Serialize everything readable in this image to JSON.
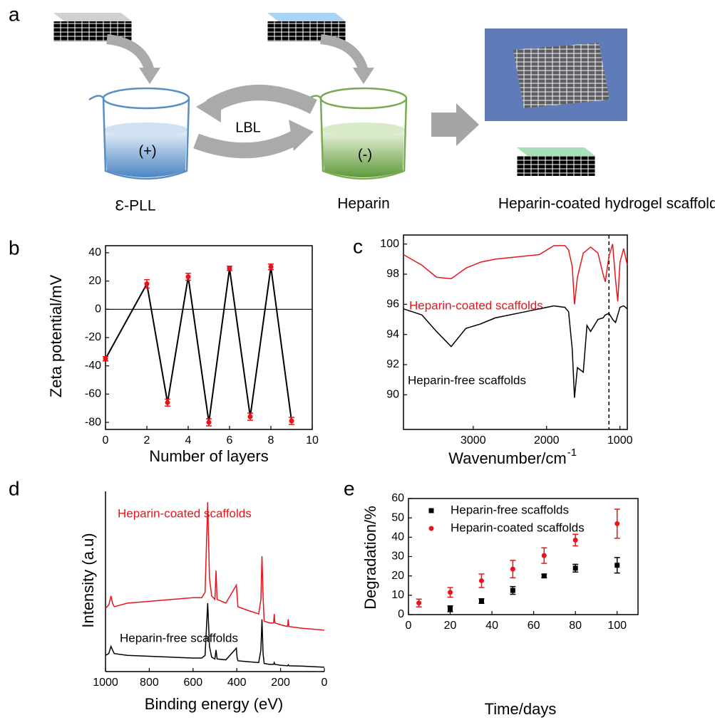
{
  "diagram": {
    "panel": "a",
    "lbl": "LBL",
    "plus": "(+)",
    "minus": "(-)",
    "left_label": "Ɛ-PLL",
    "mid_label": "Heparin",
    "right_label": "Heparin-coated hydrogel scaffolds"
  },
  "chart_data": [
    {
      "panel": "b",
      "type": "line",
      "box": true,
      "xlabel": "Number of layers",
      "ylabel": "Zeta potential/mV",
      "x": [
        0,
        2,
        3,
        4,
        5,
        6,
        7,
        8,
        9
      ],
      "series": [
        {
          "color": "#000000",
          "marker_color": "#e8141b",
          "values": [
            -35,
            18,
            -66,
            23,
            -80,
            29,
            -76,
            30,
            -79
          ],
          "errors": [
            1.5,
            3,
            2.5,
            2.5,
            2.5,
            1.5,
            2.5,
            2,
            2.5
          ]
        }
      ],
      "xlim": [
        0,
        10
      ],
      "ylim": [
        -85,
        45
      ],
      "xticks": [
        0,
        2,
        4,
        6,
        8,
        10
      ],
      "yticks": [
        40,
        20,
        0,
        -20,
        -40,
        -60,
        -80
      ],
      "zero_line": true
    },
    {
      "panel": "c",
      "type": "line",
      "box": true,
      "xlabel": "Wavenumber/cm",
      "xlabel_superscript": "-1",
      "x": [
        3950,
        3700,
        3500,
        3300,
        3100,
        2900,
        2700,
        2500,
        2300,
        2100,
        1900,
        1750,
        1700,
        1650,
        1620,
        1580,
        1500,
        1450,
        1400,
        1300,
        1230,
        1200,
        1150,
        1100,
        1060,
        1030,
        1000,
        950,
        900
      ],
      "series": [
        {
          "name": "Heparin-coated scaffolds",
          "color": "#e8141b",
          "values": [
            99.3,
            98.6,
            97.8,
            97.7,
            98.4,
            98.8,
            99.0,
            99.1,
            99.2,
            99.3,
            99.9,
            99.9,
            99.6,
            98.5,
            96.0,
            97.8,
            99.4,
            99.6,
            99.8,
            99.4,
            98.0,
            97.5,
            99.2,
            100.0,
            97.6,
            96.2,
            98.8,
            99.7,
            98.6
          ]
        },
        {
          "name": "Heparin-free scaffolds",
          "color": "#000000",
          "values": [
            95.7,
            95.3,
            94.2,
            93.2,
            94.4,
            94.7,
            95.1,
            95.3,
            95.5,
            95.7,
            95.9,
            95.8,
            95.5,
            93.0,
            89.8,
            91.8,
            91.5,
            94.6,
            94.2,
            95.0,
            95.1,
            95.3,
            95.4,
            95.0,
            94.8,
            95.3,
            95.8,
            95.9,
            95.7
          ]
        }
      ],
      "xlim": [
        3950,
        900
      ],
      "ylim": [
        87.7,
        100.6
      ],
      "xticks": [
        3000,
        2000,
        1000
      ],
      "yticks": [
        90,
        92,
        94,
        96,
        98,
        100
      ],
      "vline": 1150
    },
    {
      "panel": "d",
      "type": "line",
      "box": false,
      "xlabel": "Binding energy (eV)",
      "ylabel": "Intensity (a.u)",
      "x": [
        1000,
        985,
        975,
        968,
        960,
        900,
        800,
        700,
        600,
        560,
        545,
        533,
        525,
        515,
        500,
        495,
        490,
        450,
        402,
        399,
        395,
        350,
        300,
        290,
        285,
        280,
        275,
        250,
        232,
        229,
        226,
        200,
        168,
        165,
        162,
        100,
        50,
        0
      ],
      "series": [
        {
          "name": "Heparin-coated scaffolds",
          "color": "#e8141b",
          "values": [
            35,
            37,
            42,
            38,
            36,
            38,
            39,
            40,
            41,
            41,
            44,
            94,
            52,
            42,
            40,
            56,
            40,
            38,
            48,
            43,
            36,
            34,
            32,
            40,
            64,
            42,
            28,
            27,
            27,
            32,
            27,
            26,
            25,
            29,
            25,
            24,
            23.5,
            23
          ]
        },
        {
          "name": "Heparin-free scaffolds",
          "color": "#000000",
          "values": [
            9,
            10,
            14,
            12,
            10,
            9,
            8.5,
            8,
            7.5,
            7.5,
            9,
            38,
            14,
            8,
            7,
            12,
            7,
            6.5,
            13,
            8,
            6,
            5.5,
            5,
            12,
            29,
            10,
            4.5,
            4,
            4,
            5,
            4,
            3.5,
            3.2,
            3.8,
            3.2,
            3,
            2.7,
            2.4
          ]
        }
      ],
      "xlim": [
        1000,
        0
      ],
      "ylim": [
        0,
        100
      ],
      "xticks": [
        1000,
        800,
        600,
        400,
        200,
        0
      ]
    },
    {
      "panel": "e",
      "type": "scatter",
      "box": true,
      "xlabel": "Time/days",
      "ylabel": "Degradation/%",
      "legend": "upper left",
      "x": [
        5,
        20,
        35,
        50,
        65,
        80,
        100
      ],
      "series": [
        {
          "name": "Heparin-free scaffolds",
          "color": "#000000",
          "marker": "square",
          "values": [
            null,
            3,
            7,
            12.5,
            20,
            24,
            25.5
          ],
          "errors": [
            null,
            1.5,
            1.2,
            2,
            0.8,
            2,
            4
          ]
        },
        {
          "name": "Heparin-coated scaffolds",
          "color": "#e8141b",
          "marker": "circle",
          "values": [
            6,
            11.5,
            17.5,
            23.5,
            30.5,
            38.5,
            47
          ],
          "errors": [
            2,
            2.5,
            3.5,
            4.5,
            4,
            3,
            7.5
          ]
        }
      ],
      "xlim": [
        0,
        110
      ],
      "ylim": [
        0,
        60
      ],
      "xticks": [
        0,
        20,
        40,
        60,
        80,
        100
      ],
      "yticks": [
        0,
        10,
        20,
        30,
        40,
        50,
        60
      ]
    }
  ]
}
